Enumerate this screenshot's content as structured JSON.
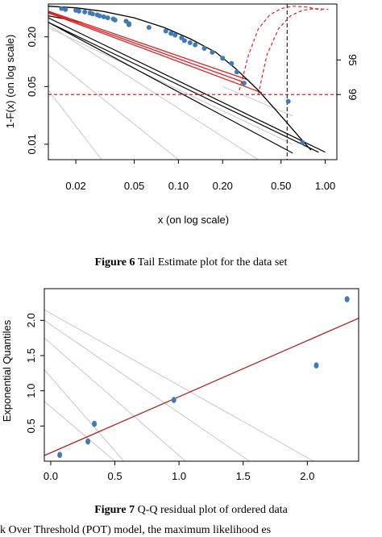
{
  "chart_data": [
    {
      "type": "scatter",
      "caption_label": "Figure 6",
      "caption_text": "Tail Estimate plot for the data set",
      "xlabel": "x (on log scale)",
      "ylabel": "1-F(x) (on log scale)",
      "x_scale": "log",
      "y_scale": "log",
      "xlim": [
        0.013,
        1.2
      ],
      "ylim": [
        0.0065,
        0.5
      ],
      "x_ticks": [
        0.02,
        0.05,
        0.1,
        0.2,
        0.5,
        1.0
      ],
      "x_tick_labels": [
        "0.02",
        "0.05",
        "0.10",
        "0.20",
        "0.50",
        "1.00"
      ],
      "y_ticks": [
        0.01,
        0.05,
        0.2
      ],
      "y_tick_labels": [
        "0.01",
        "0.05",
        "0.20"
      ],
      "right_axis_labels": [
        {
          "label": "95",
          "at": 0.105
        },
        {
          "label": "99",
          "at": 0.04
        }
      ],
      "quantile_marker_x": 0.55,
      "quantile_level_y": 0.04,
      "points": [
        {
          "x": 0.016,
          "y": 0.44
        },
        {
          "x": 0.017,
          "y": 0.43
        },
        {
          "x": 0.02,
          "y": 0.42
        },
        {
          "x": 0.021,
          "y": 0.41
        },
        {
          "x": 0.023,
          "y": 0.4
        },
        {
          "x": 0.025,
          "y": 0.39
        },
        {
          "x": 0.026,
          "y": 0.38
        },
        {
          "x": 0.028,
          "y": 0.37
        },
        {
          "x": 0.029,
          "y": 0.36
        },
        {
          "x": 0.031,
          "y": 0.35
        },
        {
          "x": 0.033,
          "y": 0.34
        },
        {
          "x": 0.036,
          "y": 0.33
        },
        {
          "x": 0.037,
          "y": 0.32
        },
        {
          "x": 0.044,
          "y": 0.31
        },
        {
          "x": 0.046,
          "y": 0.29
        },
        {
          "x": 0.046,
          "y": 0.28
        },
        {
          "x": 0.063,
          "y": 0.26
        },
        {
          "x": 0.082,
          "y": 0.235
        },
        {
          "x": 0.089,
          "y": 0.22
        },
        {
          "x": 0.095,
          "y": 0.21
        },
        {
          "x": 0.105,
          "y": 0.195
        },
        {
          "x": 0.11,
          "y": 0.18
        },
        {
          "x": 0.12,
          "y": 0.17
        },
        {
          "x": 0.13,
          "y": 0.16
        },
        {
          "x": 0.15,
          "y": 0.145
        },
        {
          "x": 0.17,
          "y": 0.13
        },
        {
          "x": 0.2,
          "y": 0.11
        },
        {
          "x": 0.23,
          "y": 0.095
        },
        {
          "x": 0.25,
          "y": 0.075
        },
        {
          "x": 0.28,
          "y": 0.055
        },
        {
          "x": 0.56,
          "y": 0.033
        },
        {
          "x": 0.7,
          "y": 0.0105
        }
      ],
      "black_lines": [
        [
          [
            0.013,
            0.3
          ],
          [
            0.9,
            0.008
          ]
        ],
        [
          [
            0.013,
            0.34
          ],
          [
            1.0,
            0.008
          ]
        ],
        [
          [
            0.013,
            0.3
          ],
          [
            0.6,
            0.0078
          ]
        ],
        [
          [
            0.013,
            0.36
          ],
          [
            0.022,
            0.3
          ]
        ]
      ],
      "grey_lines": [
        [
          [
            0.013,
            0.28
          ],
          [
            0.35,
            0.0065
          ]
        ],
        [
          [
            0.013,
            0.12
          ],
          [
            0.1,
            0.0065
          ]
        ],
        [
          [
            0.013,
            0.045
          ],
          [
            0.03,
            0.0065
          ]
        ],
        [
          [
            0.013,
            0.26
          ],
          [
            0.6,
            0.01
          ]
        ],
        [
          [
            0.2,
            0.05
          ],
          [
            0.6,
            0.022
          ]
        ]
      ],
      "red_lines": [
        [
          [
            0.013,
            0.4
          ],
          [
            0.29,
            0.055
          ]
        ],
        [
          [
            0.013,
            0.41
          ],
          [
            0.3,
            0.06
          ]
        ],
        [
          [
            0.013,
            0.39
          ],
          [
            0.37,
            0.042
          ]
        ]
      ],
      "red_dashed_curves": [
        [
          [
            0.26,
            0.045
          ],
          [
            0.3,
            0.12
          ],
          [
            0.35,
            0.25
          ],
          [
            0.42,
            0.37
          ],
          [
            0.5,
            0.44
          ],
          [
            0.6,
            0.47
          ],
          [
            0.75,
            0.46
          ],
          [
            0.95,
            0.42
          ]
        ],
        [
          [
            0.35,
            0.04
          ],
          [
            0.4,
            0.12
          ],
          [
            0.48,
            0.25
          ],
          [
            0.58,
            0.36
          ],
          [
            0.7,
            0.42
          ],
          [
            0.85,
            0.44
          ],
          [
            1.05,
            0.43
          ]
        ]
      ],
      "fit_curve": [
        [
          0.013,
          0.47
        ],
        [
          0.02,
          0.45
        ],
        [
          0.03,
          0.41
        ],
        [
          0.05,
          0.34
        ],
        [
          0.08,
          0.26
        ],
        [
          0.12,
          0.19
        ],
        [
          0.18,
          0.13
        ],
        [
          0.25,
          0.08
        ],
        [
          0.35,
          0.045
        ],
        [
          0.5,
          0.022
        ],
        [
          0.7,
          0.011
        ],
        [
          0.8,
          0.0085
        ]
      ]
    },
    {
      "type": "scatter",
      "caption_label": "Figure 7",
      "caption_text": "Q-Q residual plot of ordered data",
      "xlabel": "",
      "ylabel": "Exponential Quantiles",
      "xlim": [
        -0.05,
        2.4
      ],
      "ylim": [
        0,
        2.45
      ],
      "x_ticks": [
        0.0,
        0.5,
        1.0,
        1.5,
        2.0
      ],
      "x_tick_labels": [
        "0.0",
        "0.5",
        "1.0",
        "1.5",
        "2.0"
      ],
      "y_ticks": [
        0.5,
        1.0,
        1.5,
        2.0
      ],
      "y_tick_labels": [
        "0.5",
        "1.0",
        "1.5",
        "2.0"
      ],
      "points": [
        {
          "x": 0.07,
          "y": 0.09
        },
        {
          "x": 0.29,
          "y": 0.28
        },
        {
          "x": 0.34,
          "y": 0.53
        },
        {
          "x": 0.96,
          "y": 0.87
        },
        {
          "x": 2.07,
          "y": 1.36
        },
        {
          "x": 2.31,
          "y": 2.3
        }
      ],
      "fit_line": [
        [
          -0.05,
          0.08
        ],
        [
          2.4,
          2.03
        ]
      ],
      "grey_lines": [
        [
          [
            -0.05,
            2.15
          ],
          [
            2.05,
            0.0
          ]
        ],
        [
          [
            -0.05,
            2.0
          ],
          [
            1.55,
            0.0
          ]
        ],
        [
          [
            -0.05,
            1.75
          ],
          [
            1.05,
            0.0
          ]
        ],
        [
          [
            -0.05,
            1.3
          ],
          [
            0.57,
            0.0
          ]
        ],
        [
          [
            -0.05,
            0.85
          ],
          [
            0.5,
            0.0
          ]
        ]
      ]
    }
  ],
  "page": {
    "caption6_label": "Figure 6",
    "caption6_text": " Tail Estimate plot for the data set",
    "caption7_label": "Figure 7",
    "caption7_text": " Q-Q residual plot of ordered data",
    "body_text": "k Over Threshold (POT) model, the maximum likelihood es"
  }
}
